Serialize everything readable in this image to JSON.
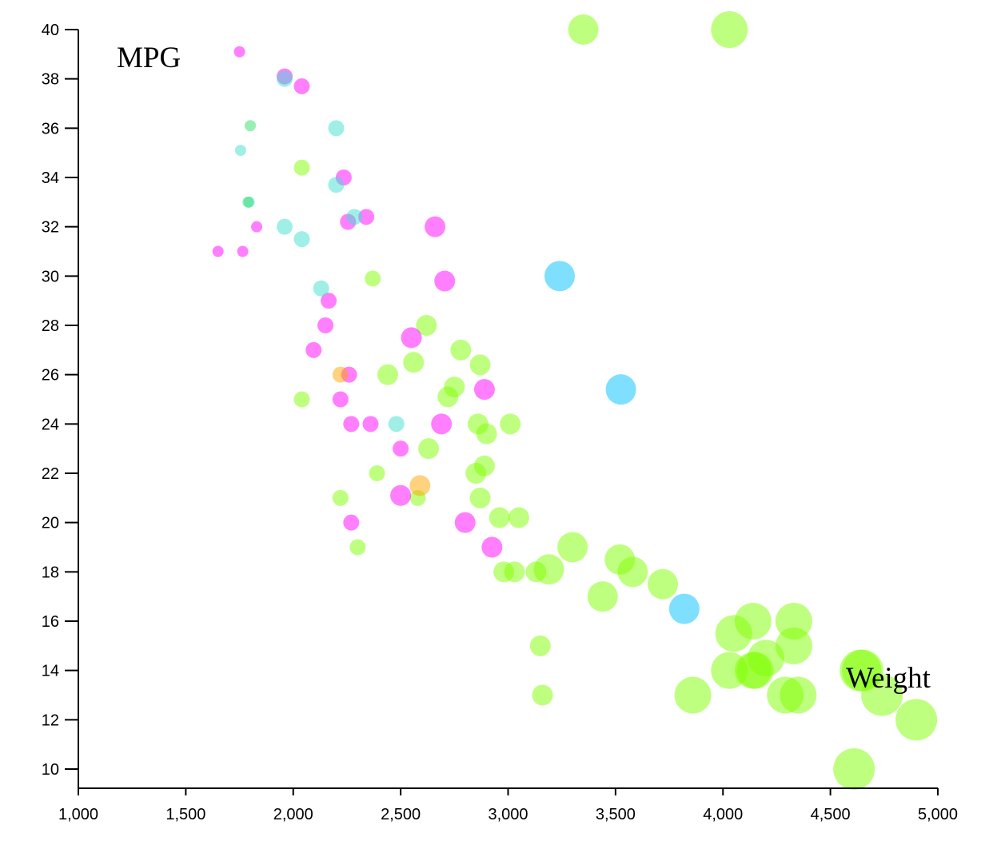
{
  "chart_data": {
    "type": "scatter",
    "xlabel": "Weight",
    "ylabel": "MPG",
    "xlim": [
      1000,
      5000
    ],
    "ylim": [
      10,
      40
    ],
    "x_ticks": [
      "1,000",
      "1,500",
      "2,000",
      "2,500",
      "3,000",
      "3,500",
      "4,000",
      "4,500",
      "5,000"
    ],
    "y_ticks": [
      "10",
      "12",
      "14",
      "16",
      "18",
      "20",
      "22",
      "24",
      "26",
      "28",
      "30",
      "32",
      "34",
      "36",
      "38",
      "40"
    ],
    "grid": false,
    "series": [
      {
        "color": "#7FFF00",
        "points": [
          {
            "x": 3350,
            "y": 40,
            "size": 3
          },
          {
            "x": 4030,
            "y": 40,
            "size": 4
          },
          {
            "x": 2040,
            "y": 34.4,
            "size": 1
          },
          {
            "x": 2370,
            "y": 29.9,
            "size": 1
          },
          {
            "x": 2620,
            "y": 28,
            "size": 2
          },
          {
            "x": 2780,
            "y": 27,
            "size": 2
          },
          {
            "x": 2870,
            "y": 26.4,
            "size": 2
          },
          {
            "x": 2560,
            "y": 26.5,
            "size": 2
          },
          {
            "x": 2440,
            "y": 26,
            "size": 2
          },
          {
            "x": 2750,
            "y": 25.5,
            "size": 2
          },
          {
            "x": 2720,
            "y": 25.1,
            "size": 2
          },
          {
            "x": 2040,
            "y": 25,
            "size": 1
          },
          {
            "x": 2860,
            "y": 24,
            "size": 2
          },
          {
            "x": 2900,
            "y": 23.6,
            "size": 2
          },
          {
            "x": 3010,
            "y": 24,
            "size": 2
          },
          {
            "x": 2630,
            "y": 23,
            "size": 2
          },
          {
            "x": 2890,
            "y": 22.3,
            "size": 2
          },
          {
            "x": 2850,
            "y": 22,
            "size": 2
          },
          {
            "x": 2390,
            "y": 22,
            "size": 1
          },
          {
            "x": 2220,
            "y": 21,
            "size": 1
          },
          {
            "x": 2580,
            "y": 21,
            "size": 1
          },
          {
            "x": 2870,
            "y": 21,
            "size": 2
          },
          {
            "x": 2960,
            "y": 20.2,
            "size": 2
          },
          {
            "x": 3050,
            "y": 20.2,
            "size": 2
          },
          {
            "x": 2300,
            "y": 19,
            "size": 1
          },
          {
            "x": 3300,
            "y": 19,
            "size": 3
          },
          {
            "x": 3520,
            "y": 18.5,
            "size": 3
          },
          {
            "x": 3580,
            "y": 18,
            "size": 3
          },
          {
            "x": 2980,
            "y": 18,
            "size": 2
          },
          {
            "x": 3030,
            "y": 18,
            "size": 2
          },
          {
            "x": 3130,
            "y": 18,
            "size": 2
          },
          {
            "x": 3190,
            "y": 18.1,
            "size": 3
          },
          {
            "x": 3720,
            "y": 17.5,
            "size": 3
          },
          {
            "x": 3440,
            "y": 17,
            "size": 3
          },
          {
            "x": 4140,
            "y": 16,
            "size": 4
          },
          {
            "x": 4330,
            "y": 16,
            "size": 4
          },
          {
            "x": 4050,
            "y": 15.5,
            "size": 4
          },
          {
            "x": 4330,
            "y": 15,
            "size": 4
          },
          {
            "x": 4200,
            "y": 14.5,
            "size": 4
          },
          {
            "x": 3150,
            "y": 15,
            "size": 2
          },
          {
            "x": 4030,
            "y": 14,
            "size": 4
          },
          {
            "x": 4140,
            "y": 14,
            "size": 4
          },
          {
            "x": 4150,
            "y": 14,
            "size": 4
          },
          {
            "x": 4640,
            "y": 14,
            "size": 5
          },
          {
            "x": 4650,
            "y": 14,
            "size": 5
          },
          {
            "x": 3160,
            "y": 13,
            "size": 2
          },
          {
            "x": 3860,
            "y": 13,
            "size": 4
          },
          {
            "x": 4290,
            "y": 13,
            "size": 4
          },
          {
            "x": 4350,
            "y": 13,
            "size": 4
          },
          {
            "x": 4740,
            "y": 13,
            "size": 5
          },
          {
            "x": 4900,
            "y": 12,
            "size": 5
          },
          {
            "x": 4610,
            "y": 10,
            "size": 5
          }
        ]
      },
      {
        "color": "#FF00FF",
        "points": [
          {
            "x": 1750,
            "y": 39.1,
            "size": 0
          },
          {
            "x": 1960,
            "y": 38.1,
            "size": 1
          },
          {
            "x": 2040,
            "y": 37.7,
            "size": 1
          },
          {
            "x": 2235,
            "y": 34,
            "size": 1
          },
          {
            "x": 2255,
            "y": 32.2,
            "size": 1
          },
          {
            "x": 2340,
            "y": 32.4,
            "size": 1
          },
          {
            "x": 2660,
            "y": 32,
            "size": 2
          },
          {
            "x": 1830,
            "y": 32,
            "size": 0
          },
          {
            "x": 1650,
            "y": 31,
            "size": 0
          },
          {
            "x": 1765,
            "y": 31,
            "size": 0
          },
          {
            "x": 2705,
            "y": 29.8,
            "size": 2
          },
          {
            "x": 2165,
            "y": 29,
            "size": 1
          },
          {
            "x": 2150,
            "y": 28,
            "size": 1
          },
          {
            "x": 2095,
            "y": 27,
            "size": 1
          },
          {
            "x": 2550,
            "y": 27.5,
            "size": 2
          },
          {
            "x": 2260,
            "y": 26,
            "size": 1
          },
          {
            "x": 2890,
            "y": 25.4,
            "size": 2
          },
          {
            "x": 2220,
            "y": 25,
            "size": 1
          },
          {
            "x": 2270,
            "y": 24,
            "size": 1
          },
          {
            "x": 2360,
            "y": 24,
            "size": 1
          },
          {
            "x": 2690,
            "y": 24,
            "size": 2
          },
          {
            "x": 2500,
            "y": 23,
            "size": 1
          },
          {
            "x": 2500,
            "y": 21.1,
            "size": 2
          },
          {
            "x": 2270,
            "y": 20,
            "size": 1
          },
          {
            "x": 2800,
            "y": 20,
            "size": 2
          },
          {
            "x": 2925,
            "y": 19,
            "size": 2
          }
        ]
      },
      {
        "color": "#40E0D0",
        "points": [
          {
            "x": 1960,
            "y": 38,
            "size": 1
          },
          {
            "x": 2200,
            "y": 36,
            "size": 1
          },
          {
            "x": 1755,
            "y": 35.1,
            "size": 0
          },
          {
            "x": 2200,
            "y": 33.7,
            "size": 1
          },
          {
            "x": 1795,
            "y": 33,
            "size": 0
          },
          {
            "x": 2285,
            "y": 32.4,
            "size": 1
          },
          {
            "x": 1960,
            "y": 32,
            "size": 1
          },
          {
            "x": 2040,
            "y": 31.5,
            "size": 1
          },
          {
            "x": 2130,
            "y": 29.5,
            "size": 1
          },
          {
            "x": 2480,
            "y": 24,
            "size": 1
          }
        ]
      },
      {
        "color": "#00BFFF",
        "points": [
          {
            "x": 3240,
            "y": 30,
            "size": 3
          },
          {
            "x": 3525,
            "y": 25.4,
            "size": 3
          },
          {
            "x": 3820,
            "y": 16.5,
            "size": 3
          }
        ]
      },
      {
        "color": "#33DD66",
        "points": [
          {
            "x": 1800,
            "y": 36.1,
            "size": 0
          },
          {
            "x": 1790,
            "y": 33,
            "size": 0
          }
        ]
      },
      {
        "color": "#FFA500",
        "points": [
          {
            "x": 2220,
            "y": 26,
            "size": 1
          },
          {
            "x": 2590,
            "y": 21.5,
            "size": 2
          }
        ]
      }
    ]
  }
}
